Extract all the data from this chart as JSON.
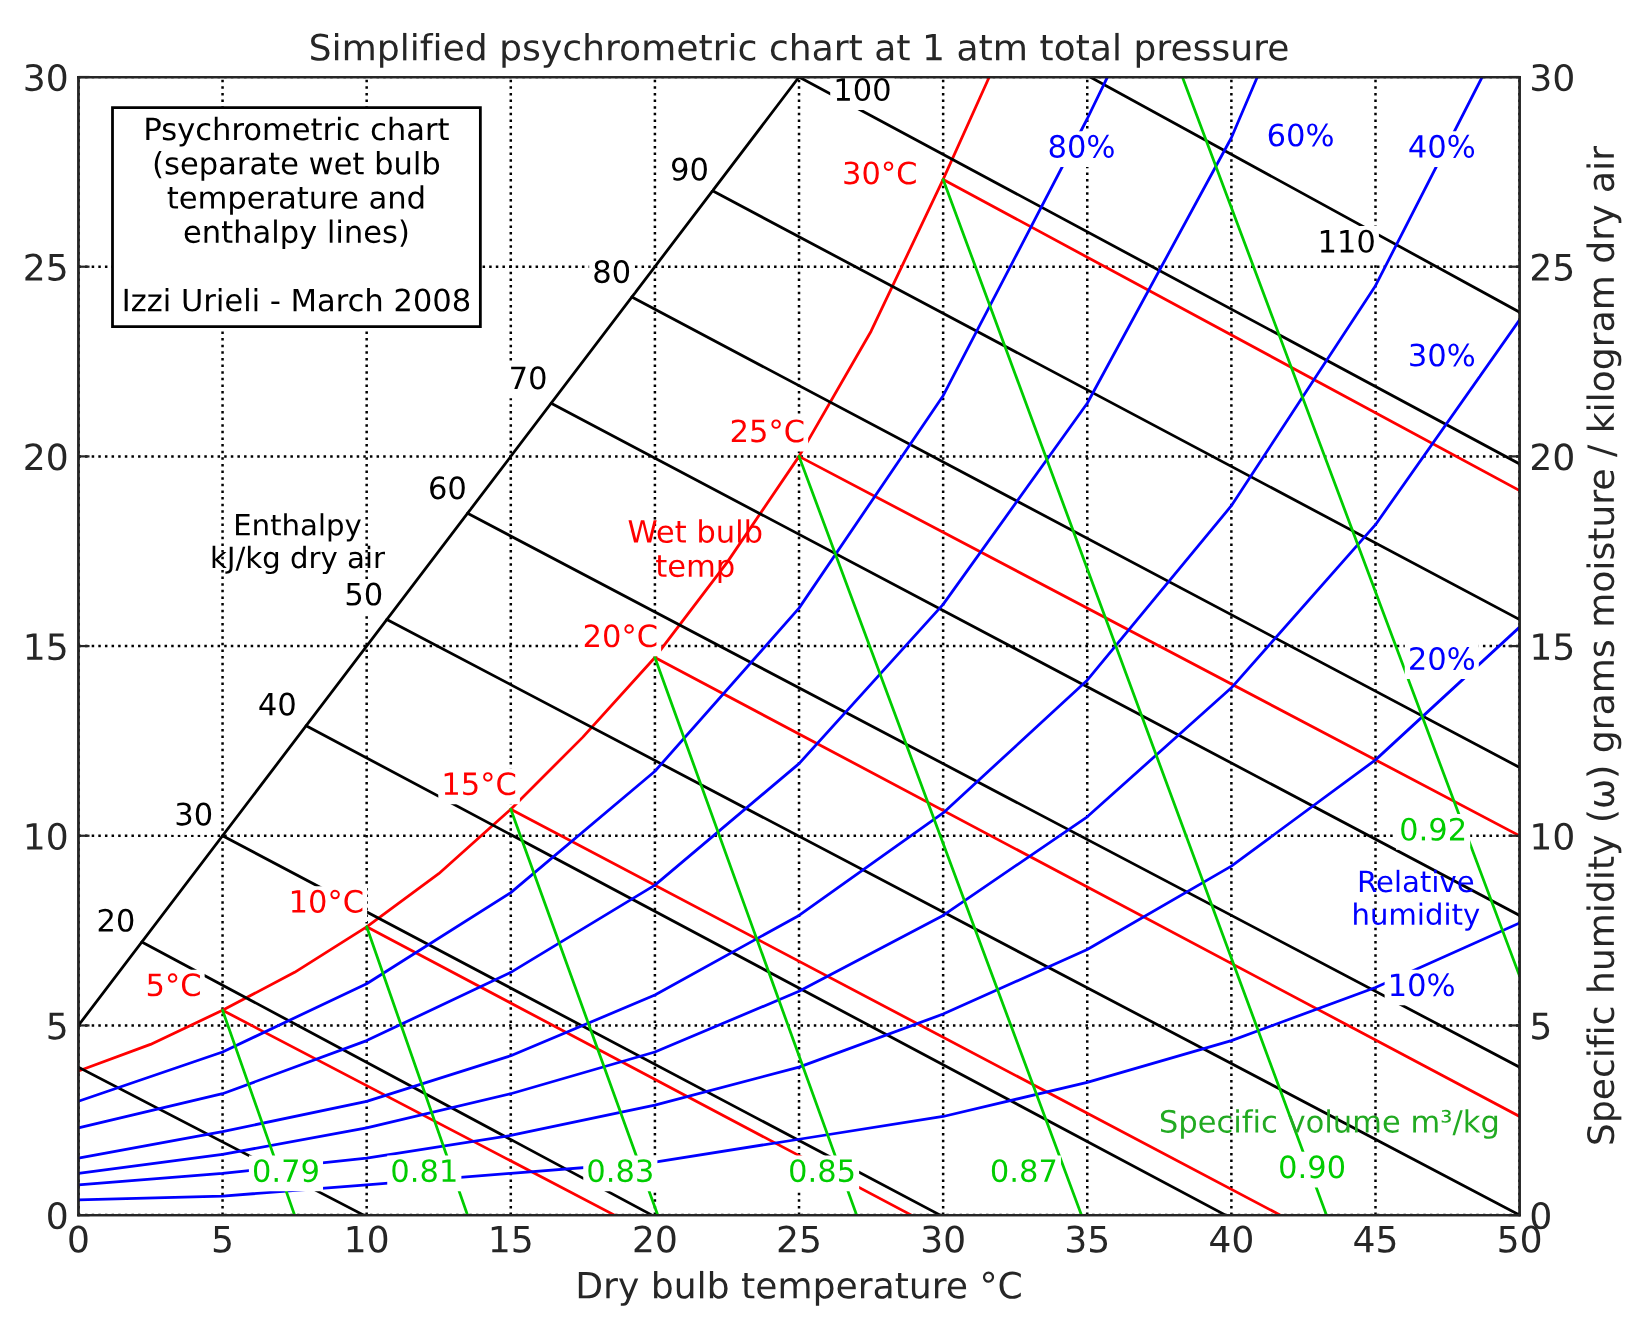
{
  "chart_data": {
    "type": "line",
    "title": "Simplified psychrometric chart at 1 atm total pressure",
    "xlabel": "Dry bulb temperature °C",
    "y2label": "Specific humidity (ω) grams moisture / kilogram dry air",
    "xlim": [
      0,
      50
    ],
    "xticks": [
      0,
      5,
      10,
      15,
      20,
      25,
      30,
      35,
      40,
      45,
      50
    ],
    "ylim": [
      0,
      30
    ],
    "yticks": [
      0,
      5,
      10,
      15,
      20,
      25,
      30
    ],
    "y2lim": [
      0,
      30
    ],
    "y2ticks": [
      0,
      5,
      10,
      15,
      20,
      25,
      30
    ],
    "grid": true,
    "legend": false,
    "line_style": "solid",
    "annotations": [
      "Psychrometric chart\n(separate wet bulb\ntemperature and\nenthalpy lines)\n\nIzzi Urieli - March 2008",
      "Enthalpy\nkJ/kg dry air",
      "Wet bulb\ntemp",
      "Relative\nhumidity",
      "Specific volume m³/kg"
    ],
    "series": [
      {
        "color": "#ff0000",
        "x": [
          0,
          2.5,
          5,
          7.5,
          10,
          12.5,
          15,
          17.5,
          20,
          22.5,
          25,
          27.5,
          30,
          31.6
        ],
        "values": [
          3.8,
          4.5,
          5.4,
          6.4,
          7.6,
          9.0,
          10.7,
          12.6,
          14.7,
          17.2,
          20.0,
          23.3,
          27.3,
          30
        ]
      },
      {
        "color": "#000000",
        "x": [
          0,
          25
        ],
        "values": [
          5,
          30
        ]
      },
      {
        "color": "#000000",
        "x": [
          0,
          9.9
        ],
        "values": [
          3.9,
          0
        ]
      },
      {
        "name": "20",
        "color": "#000000",
        "x": [
          2.2,
          19.9
        ],
        "values": [
          7.2,
          0
        ]
      },
      {
        "name": "30",
        "color": "#000000",
        "x": [
          5,
          29.9
        ],
        "values": [
          10,
          0
        ]
      },
      {
        "name": "40",
        "color": "#000000",
        "x": [
          7.9,
          39.8
        ],
        "values": [
          12.9,
          0
        ]
      },
      {
        "name": "50",
        "color": "#000000",
        "x": [
          10.7,
          50
        ],
        "values": [
          15.7,
          0
        ]
      },
      {
        "name": "60",
        "color": "#000000",
        "x": [
          13.5,
          50
        ],
        "values": [
          18.5,
          3.9
        ]
      },
      {
        "name": "70",
        "color": "#000000",
        "x": [
          16.4,
          50
        ],
        "values": [
          21.4,
          7.9
        ]
      },
      {
        "name": "80",
        "color": "#000000",
        "x": [
          19.2,
          50
        ],
        "values": [
          24.2,
          11.8
        ]
      },
      {
        "name": "90",
        "color": "#000000",
        "x": [
          22.0,
          50
        ],
        "values": [
          27.0,
          15.7
        ]
      },
      {
        "name": "100",
        "color": "#000000",
        "x": [
          25,
          50
        ],
        "values": [
          30,
          19.8
        ]
      },
      {
        "name": "110",
        "color": "#000000",
        "x": [
          35.1,
          50
        ],
        "values": [
          30,
          23.8
        ]
      },
      {
        "name": "5°C",
        "color": "#ff0000",
        "x": [
          5,
          18.6
        ],
        "values": [
          5.4,
          0
        ]
      },
      {
        "name": "10°C",
        "color": "#ff0000",
        "x": [
          10,
          28.9
        ],
        "values": [
          7.6,
          0
        ]
      },
      {
        "name": "15°C",
        "color": "#ff0000",
        "x": [
          15,
          41.7
        ],
        "values": [
          10.7,
          0
        ]
      },
      {
        "name": "20°C",
        "color": "#ff0000",
        "x": [
          20,
          50
        ],
        "values": [
          14.7,
          2.6
        ]
      },
      {
        "name": "25°C",
        "color": "#ff0000",
        "x": [
          25,
          50
        ],
        "values": [
          20.0,
          10.0
        ]
      },
      {
        "name": "30°C",
        "color": "#ff0000",
        "x": [
          30,
          50
        ],
        "values": [
          27.3,
          19.1
        ]
      },
      {
        "name": "80%",
        "color": "#0000ff",
        "x": [
          0,
          5,
          10,
          15,
          20,
          25,
          30,
          35,
          35.7
        ],
        "values": [
          3.0,
          4.3,
          6.1,
          8.5,
          11.7,
          16.0,
          21.6,
          28.9,
          30
        ]
      },
      {
        "name": "60%",
        "color": "#0000ff",
        "x": [
          0,
          5,
          10,
          15,
          20,
          25,
          30,
          35,
          40,
          40.9
        ],
        "values": [
          2.3,
          3.2,
          4.6,
          6.4,
          8.7,
          11.9,
          16.1,
          21.4,
          28.4,
          30
        ]
      },
      {
        "name": "40%",
        "color": "#0000ff",
        "x": [
          0,
          5,
          10,
          15,
          20,
          25,
          30,
          35,
          40,
          45,
          48.7
        ],
        "values": [
          1.5,
          2.2,
          3.0,
          4.2,
          5.8,
          7.9,
          10.6,
          14.1,
          18.7,
          24.5,
          30
        ]
      },
      {
        "name": "30%",
        "color": "#0000ff",
        "x": [
          0,
          5,
          10,
          15,
          20,
          25,
          30,
          35,
          40,
          45,
          50
        ],
        "values": [
          1.1,
          1.6,
          2.3,
          3.2,
          4.3,
          5.9,
          7.9,
          10.5,
          13.9,
          18.2,
          23.6
        ]
      },
      {
        "name": "20%",
        "color": "#0000ff",
        "x": [
          0,
          5,
          10,
          15,
          20,
          25,
          30,
          35,
          40,
          45,
          50
        ],
        "values": [
          0.8,
          1.1,
          1.5,
          2.1,
          2.9,
          3.9,
          5.3,
          7.0,
          9.2,
          12.0,
          15.5
        ]
      },
      {
        "name": "10%",
        "color": "#0000ff",
        "x": [
          0,
          5,
          10,
          15,
          20,
          25,
          30,
          35,
          40,
          45,
          50
        ],
        "values": [
          0.4,
          0.5,
          0.8,
          1.1,
          1.4,
          2.0,
          2.6,
          3.5,
          4.6,
          6.0,
          7.7
        ]
      },
      {
        "name": "0.79",
        "color": "#00cc00",
        "x": [
          5,
          7.5
        ],
        "values": [
          5.4,
          0
        ]
      },
      {
        "name": "0.81",
        "color": "#00cc00",
        "x": [
          10,
          13.5
        ],
        "values": [
          7.6,
          0
        ]
      },
      {
        "name": "0.83",
        "color": "#00cc00",
        "x": [
          15,
          20.1
        ],
        "values": [
          10.7,
          0
        ]
      },
      {
        "name": "0.85",
        "color": "#00cc00",
        "x": [
          20,
          27
        ],
        "values": [
          14.7,
          0
        ]
      },
      {
        "name": "0.87",
        "color": "#00cc00",
        "x": [
          25,
          34.8
        ],
        "values": [
          20.0,
          0
        ]
      },
      {
        "name": "0.90",
        "color": "#00cc00",
        "x": [
          30,
          43.3
        ],
        "values": [
          27.3,
          0
        ]
      },
      {
        "name": "0.92",
        "color": "#00cc00",
        "x": [
          38.3,
          50
        ],
        "values": [
          30,
          6.3
        ]
      }
    ]
  }
}
